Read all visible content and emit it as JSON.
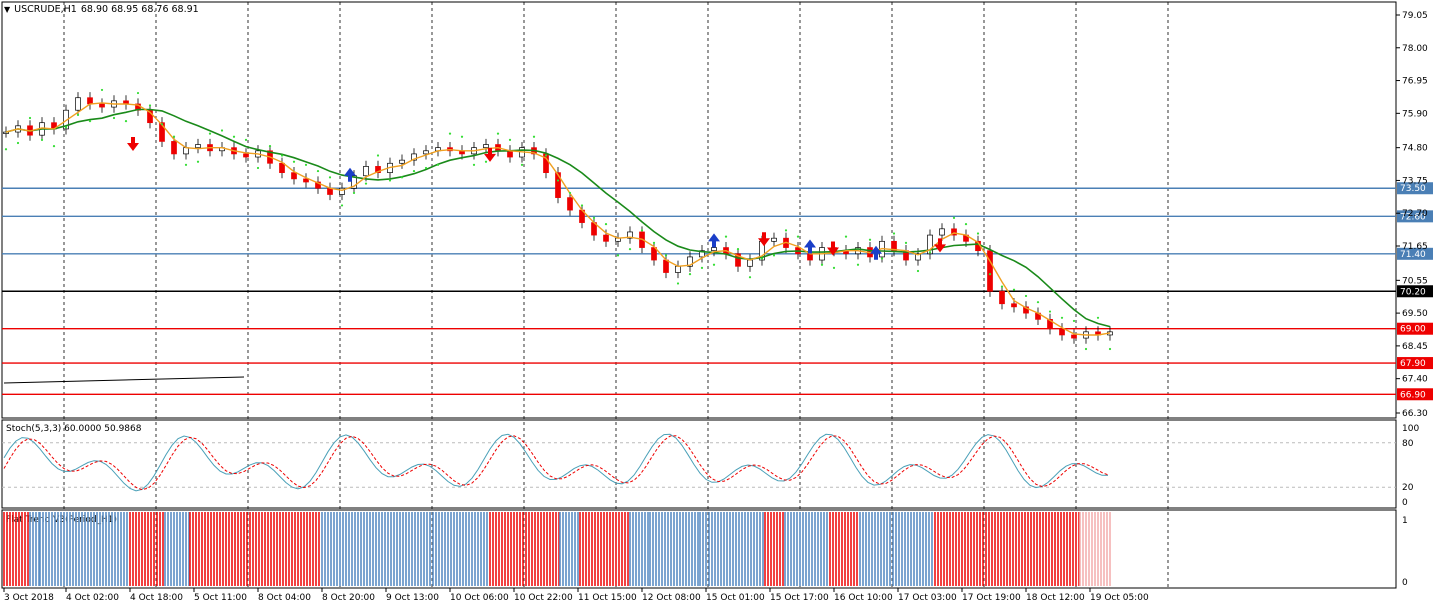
{
  "header": {
    "symbol": "USCRUDE,H1",
    "ohlc": "68.90 68.95 68.76 68.91"
  },
  "price_axis": {
    "ticks": [
      "79.05",
      "78.00",
      "76.95",
      "75.90",
      "74.80",
      "73.75",
      "72.70",
      "71.65",
      "70.55",
      "69.50",
      "68.45",
      "67.40",
      "66.30"
    ],
    "tick_values": [
      79.05,
      78.0,
      76.95,
      75.9,
      74.8,
      73.75,
      72.7,
      71.65,
      70.55,
      69.5,
      68.45,
      67.4,
      66.3
    ]
  },
  "levels": [
    {
      "label": "73.50",
      "value": 73.5,
      "color": "#4a7fb5"
    },
    {
      "label": "72.60",
      "value": 72.6,
      "color": "#4a7fb5"
    },
    {
      "label": "71.40",
      "value": 71.4,
      "color": "#4a7fb5"
    },
    {
      "label": "70.20",
      "value": 70.2,
      "color": "#000000"
    },
    {
      "label": "69.00",
      "value": 69.0,
      "color": "#ee0000"
    },
    {
      "label": "67.90",
      "value": 67.9,
      "color": "#ee0000"
    },
    {
      "label": "66.90",
      "value": 66.9,
      "color": "#ee0000"
    }
  ],
  "time_axis": [
    "3 Oct 2018",
    "4 Oct 02:00",
    "4 Oct 18:00",
    "5 Oct 11:00",
    "8 Oct 04:00",
    "8 Oct 20:00",
    "9 Oct 13:00",
    "10 Oct 06:00",
    "10 Oct 22:00",
    "11 Oct 15:00",
    "12 Oct 08:00",
    "15 Oct 01:00",
    "15 Oct 17:00",
    "16 Oct 10:00",
    "17 Oct 03:00",
    "17 Oct 19:00",
    "18 Oct 12:00",
    "19 Oct 05:00"
  ],
  "stoch": {
    "label": "Stoch(5,3,3) 60.0000 50.9868",
    "ticks": [
      "100",
      "80",
      "20",
      "0"
    ]
  },
  "flat_trend": {
    "label": "Flat Trend V3(Period_H1)",
    "ticks": [
      "1",
      "0"
    ]
  },
  "colors": {
    "bull_candle": "#ee0000",
    "bear_candle": "#ee0000",
    "fast_ma": "#f0a020",
    "slow_ma": "#1a8a1a",
    "sar": "#33dd33",
    "stoch_main": "#4aa0b8",
    "stoch_signal": "#ee0000",
    "trend_up": "#5b8ec4",
    "trend_down": "#ee1111",
    "arrow_up": "#1a3ec8",
    "arrow_down": "#ee0000"
  },
  "chart_data": {
    "type": "line",
    "series": [
      {
        "values": [
          75.3,
          75.5,
          75.2,
          75.6,
          75.4,
          76.0,
          76.4,
          76.2,
          76.1,
          76.3,
          76.2,
          76.0,
          75.6,
          75.0,
          74.6,
          74.8,
          74.9,
          74.7,
          74.8,
          74.6,
          74.5,
          74.7,
          74.3,
          74.0,
          73.8,
          73.7,
          73.5,
          73.3,
          73.5,
          73.9,
          74.2,
          74.0,
          74.3,
          74.4,
          74.6,
          74.7,
          74.8,
          74.7,
          74.6,
          74.8,
          74.9,
          74.7,
          74.5,
          74.8,
          74.6,
          74.0,
          73.2,
          72.8,
          72.4,
          72.0,
          71.8,
          71.9,
          72.1,
          71.6,
          71.2,
          70.8,
          71.0,
          71.3,
          71.5,
          71.6,
          71.4,
          71.0,
          71.2,
          71.8,
          71.9,
          71.6,
          71.4,
          71.2,
          71.6,
          71.5,
          71.4,
          71.6,
          71.3,
          71.8,
          71.5,
          71.2,
          71.4,
          72.0,
          72.2,
          72.0,
          71.8,
          71.5,
          70.2,
          69.8,
          69.7,
          69.5,
          69.3,
          69.0,
          68.8,
          68.7,
          68.9,
          68.8,
          68.9
        ]
      }
    ]
  }
}
